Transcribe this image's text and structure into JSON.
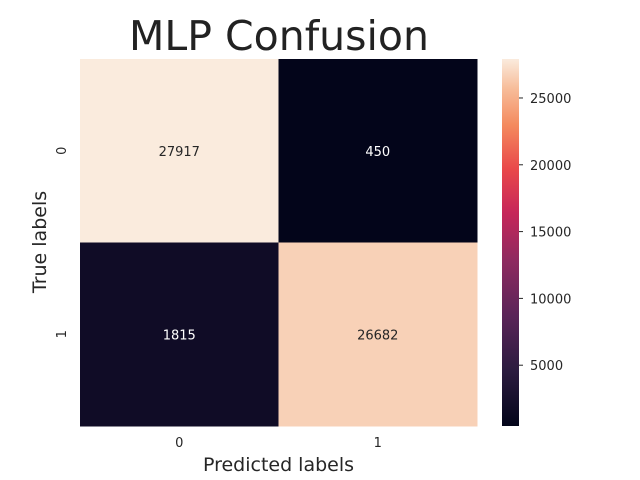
{
  "chart_data": {
    "type": "heatmap",
    "title": "MLP Confusion",
    "xlabel": "Predicted labels",
    "ylabel": "True labels",
    "x_categories": [
      "0",
      "1"
    ],
    "y_categories": [
      "0",
      "1"
    ],
    "values": [
      [
        27917,
        450
      ],
      [
        1815,
        26682
      ]
    ],
    "cell_labels": [
      [
        "27917",
        "450"
      ],
      [
        "1815",
        "26682"
      ]
    ],
    "colormap": "rocket",
    "colorbar": {
      "range": [
        450,
        27917
      ],
      "ticks": [
        5000,
        10000,
        15000,
        20000,
        25000
      ],
      "tick_labels": [
        "5000",
        "10000",
        "15000",
        "20000",
        "25000"
      ]
    },
    "grid": false
  }
}
